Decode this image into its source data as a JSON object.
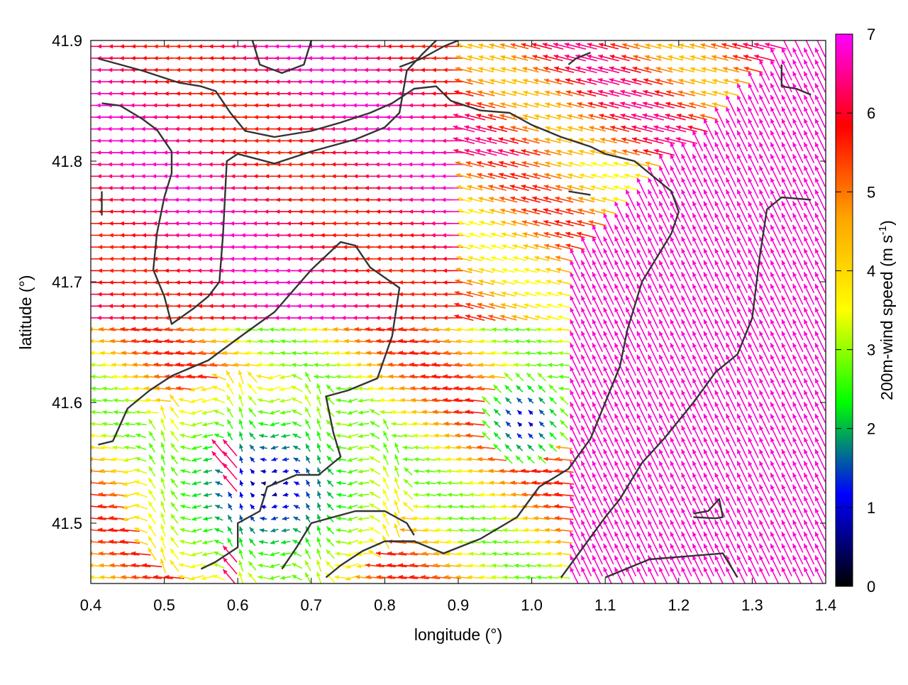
{
  "chart_data": {
    "type": "vector-field",
    "xlabel": "longitude (°)",
    "ylabel": "latitude (°)",
    "xlim": [
      0.4,
      1.4
    ],
    "ylim": [
      41.45,
      41.9
    ],
    "xticks": [
      0.4,
      0.5,
      0.6,
      0.7,
      0.8,
      0.9,
      1.0,
      1.1,
      1.2,
      1.3,
      1.4
    ],
    "xtick_labels": [
      "0.4",
      "0.5",
      "0.6",
      "0.7",
      "0.8",
      "0.9",
      "1.0",
      "1.1",
      "1.2",
      "1.3",
      "1.4"
    ],
    "yticks": [
      41.5,
      41.6,
      41.7,
      41.8,
      41.9
    ],
    "ytick_labels": [
      "41.5",
      "41.6",
      "41.7",
      "41.8",
      "41.9"
    ],
    "grid": false,
    "colorbar": {
      "label_text": "200m-wind speed (m s",
      "label_exp": "-1",
      "label_close": ")",
      "min": 0,
      "max": 7,
      "ticks": [
        0,
        1,
        2,
        3,
        4,
        5,
        6,
        7
      ],
      "tick_labels": [
        "0",
        "1",
        "2",
        "3",
        "4",
        "5",
        "6",
        "7"
      ],
      "palette": [
        "#000000",
        "#0000ff",
        "#00ff00",
        "#ffff00",
        "#ffa500",
        "#ff0000",
        "#ff00ff"
      ]
    },
    "wind_regions": [
      {
        "area": "northwest",
        "speed_range": [
          6,
          7
        ],
        "direction": "westward"
      },
      {
        "area": "northeast",
        "speed_range": [
          4,
          6
        ],
        "direction": "west-southwest"
      },
      {
        "area": "east",
        "speed_range": [
          6,
          7
        ],
        "direction": "north-northwest"
      },
      {
        "area": "southwest interior",
        "speed_range": [
          0,
          2
        ],
        "direction": "variable"
      },
      {
        "area": "southwest edge",
        "speed_range": [
          5,
          7
        ],
        "direction": "northwest"
      }
    ],
    "coastlines": [
      [
        [
          0.41,
          41.885
        ],
        [
          0.47,
          41.875
        ],
        [
          0.52,
          41.865
        ],
        [
          0.55,
          41.862
        ],
        [
          0.57,
          41.858
        ],
        [
          0.59,
          41.84
        ],
        [
          0.61,
          41.825
        ],
        [
          0.65,
          41.82
        ],
        [
          0.7,
          41.825
        ],
        [
          0.74,
          41.832
        ],
        [
          0.78,
          41.84
        ],
        [
          0.81,
          41.848
        ],
        [
          0.84,
          41.86
        ],
        [
          0.87,
          41.862
        ],
        [
          0.89,
          41.85
        ],
        [
          0.93,
          41.842
        ],
        [
          0.97,
          41.84
        ],
        [
          1.0,
          41.83
        ],
        [
          1.04,
          41.82
        ],
        [
          1.08,
          41.812
        ],
        [
          1.1,
          41.806
        ],
        [
          1.14,
          41.8
        ],
        [
          1.16,
          41.79
        ],
        [
          1.19,
          41.775
        ],
        [
          1.2,
          41.758
        ],
        [
          1.19,
          41.74
        ],
        [
          1.17,
          41.72
        ],
        [
          1.15,
          41.7
        ],
        [
          1.13,
          41.66
        ],
        [
          1.12,
          41.63
        ],
        [
          1.1,
          41.6
        ],
        [
          1.08,
          41.57
        ],
        [
          1.05,
          41.545
        ],
        [
          1.01,
          41.53
        ],
        [
          0.98,
          41.505
        ],
        [
          0.93,
          41.487
        ],
        [
          0.88,
          41.475
        ],
        [
          0.84,
          41.485
        ],
        [
          0.8,
          41.485
        ],
        [
          0.77,
          41.477
        ],
        [
          0.74,
          41.465
        ],
        [
          0.72,
          41.455
        ]
      ],
      [
        [
          0.415,
          41.848
        ],
        [
          0.44,
          41.846
        ],
        [
          0.47,
          41.835
        ],
        [
          0.49,
          41.826
        ],
        [
          0.51,
          41.808
        ],
        [
          0.51,
          41.79
        ],
        [
          0.5,
          41.77
        ],
        [
          0.49,
          41.74
        ],
        [
          0.485,
          41.71
        ],
        [
          0.5,
          41.688
        ],
        [
          0.51,
          41.665
        ],
        [
          0.54,
          41.678
        ],
        [
          0.56,
          41.688
        ],
        [
          0.575,
          41.7
        ],
        [
          0.58,
          41.74
        ],
        [
          0.585,
          41.8
        ],
        [
          0.6,
          41.806
        ],
        [
          0.65,
          41.798
        ],
        [
          0.7,
          41.808
        ],
        [
          0.76,
          41.818
        ],
        [
          0.8,
          41.828
        ],
        [
          0.82,
          41.84
        ],
        [
          0.83,
          41.875
        ],
        [
          0.85,
          41.888
        ],
        [
          0.87,
          41.9
        ]
      ],
      [
        [
          0.41,
          41.565
        ],
        [
          0.43,
          41.568
        ],
        [
          0.45,
          41.595
        ],
        [
          0.48,
          41.61
        ],
        [
          0.51,
          41.622
        ],
        [
          0.56,
          41.635
        ],
        [
          0.6,
          41.653
        ],
        [
          0.65,
          41.675
        ],
        [
          0.7,
          41.71
        ],
        [
          0.74,
          41.733
        ],
        [
          0.76,
          41.73
        ],
        [
          0.78,
          41.712
        ],
        [
          0.82,
          41.695
        ],
        [
          0.81,
          41.655
        ],
        [
          0.79,
          41.62
        ],
        [
          0.75,
          41.61
        ],
        [
          0.72,
          41.605
        ],
        [
          0.73,
          41.575
        ],
        [
          0.74,
          41.555
        ],
        [
          0.71,
          41.54
        ],
        [
          0.68,
          41.54
        ],
        [
          0.64,
          41.53
        ],
        [
          0.63,
          41.51
        ],
        [
          0.6,
          41.5
        ],
        [
          0.6,
          41.48
        ],
        [
          0.57,
          41.468
        ],
        [
          0.55,
          41.462
        ]
      ],
      [
        [
          1.38,
          41.768
        ],
        [
          1.34,
          41.77
        ],
        [
          1.32,
          41.76
        ],
        [
          1.31,
          41.72
        ],
        [
          1.3,
          41.67
        ],
        [
          1.28,
          41.64
        ],
        [
          1.25,
          41.625
        ],
        [
          1.22,
          41.6
        ],
        [
          1.18,
          41.57
        ],
        [
          1.15,
          41.55
        ],
        [
          1.12,
          41.52
        ],
        [
          1.1,
          41.505
        ],
        [
          1.07,
          41.48
        ],
        [
          1.04,
          41.455
        ]
      ],
      [
        [
          0.66,
          41.462
        ],
        [
          0.68,
          41.48
        ],
        [
          0.7,
          41.5
        ],
        [
          0.73,
          41.505
        ],
        [
          0.76,
          41.51
        ],
        [
          0.8,
          41.51
        ],
        [
          0.83,
          41.5
        ],
        [
          0.84,
          41.49
        ]
      ],
      [
        [
          1.1,
          41.455
        ],
        [
          1.16,
          41.47
        ],
        [
          1.22,
          41.473
        ],
        [
          1.26,
          41.475
        ],
        [
          1.28,
          41.455
        ]
      ],
      [
        [
          1.34,
          41.88
        ],
        [
          1.34,
          41.862
        ],
        [
          1.36,
          41.86
        ],
        [
          1.38,
          41.855
        ]
      ],
      [
        [
          1.22,
          41.508
        ],
        [
          1.24,
          41.51
        ],
        [
          1.255,
          41.52
        ],
        [
          1.26,
          41.505
        ],
        [
          1.25,
          41.504
        ],
        [
          1.22,
          41.505
        ]
      ],
      [
        [
          0.62,
          41.9
        ],
        [
          0.63,
          41.88
        ],
        [
          0.66,
          41.873
        ],
        [
          0.69,
          41.88
        ],
        [
          0.7,
          41.9
        ]
      ],
      [
        [
          0.82,
          41.878
        ],
        [
          0.85,
          41.885
        ],
        [
          0.88,
          41.895
        ],
        [
          0.9,
          41.9
        ]
      ],
      [
        [
          1.05,
          41.88
        ],
        [
          1.06,
          41.885
        ],
        [
          1.08,
          41.89
        ]
      ],
      [
        [
          0.415,
          41.775
        ],
        [
          0.415,
          41.755
        ]
      ],
      [
        [
          1.05,
          41.775
        ],
        [
          1.08,
          41.772
        ]
      ]
    ]
  }
}
